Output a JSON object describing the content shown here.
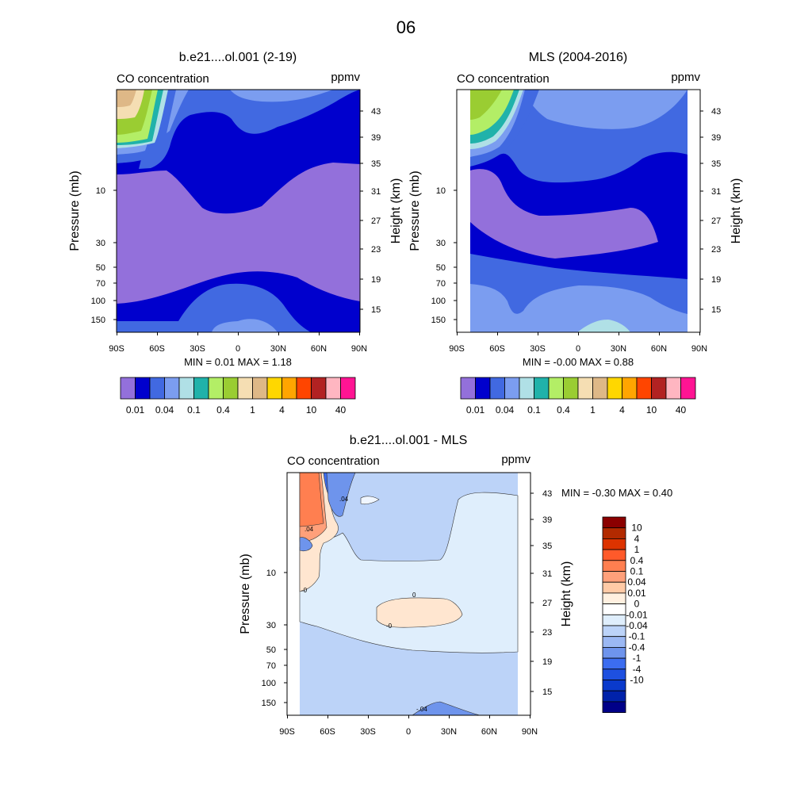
{
  "main_title": "06",
  "panels": [
    {
      "title": "b.e21....ol.001 (2-19)",
      "subtitle_left": "CO concentration",
      "subtitle_right": "ppmv",
      "y_label_left": "Pressure (mb)",
      "y_label_right": "Height (km)",
      "min_max": "MIN =   0.01  MAX =   1.18"
    },
    {
      "title": "MLS (2004-2016)",
      "subtitle_left": "CO concentration",
      "subtitle_right": "ppmv",
      "y_label_left": "Pressure (mb)",
      "y_label_right": "Height (km)",
      "min_max": "MIN =  -0.00  MAX =   0.88"
    },
    {
      "title": "b.e21....ol.001 - MLS",
      "subtitle_left": "CO concentration",
      "subtitle_right": "ppmv",
      "y_label_left": "Pressure (mb)",
      "y_label_right": "Height (km)",
      "min_max": "MIN =  -0.30  MAX =   0.40"
    }
  ],
  "chart_data": {
    "type": "contour",
    "x_ticks": [
      "90S",
      "60S",
      "30S",
      "0",
      "30N",
      "60N",
      "90N"
    ],
    "pressure_ticks": [
      "10",
      "30",
      "50",
      "70",
      "100",
      "150"
    ],
    "height_ticks": [
      "43",
      "39",
      "35",
      "31",
      "27",
      "23",
      "19",
      "15"
    ],
    "abs_colorbar": {
      "colors": [
        "#9370db",
        "#0000cd",
        "#4169e1",
        "#7b9df0",
        "#b0e0e6",
        "#20b2aa",
        "#b3ee66",
        "#9acd32",
        "#f5deb3",
        "#deb887",
        "#ffd700",
        "#ffa500",
        "#ff4500",
        "#b22222",
        "#ffb6c1",
        "#ff1493"
      ],
      "labels": [
        "0.01",
        "0.04",
        "0.1",
        "0.4",
        "1",
        "4",
        "10",
        "40"
      ]
    },
    "diff_colorbar": {
      "colors": [
        "#8b0000",
        "#b22a00",
        "#dd3300",
        "#ff5a2a",
        "#ff7f50",
        "#ffa07a",
        "#ffcaa6",
        "#fff0e0",
        "#ffffff",
        "#dfeefc",
        "#bcd3f8",
        "#9bb8f3",
        "#6e94ec",
        "#3c6df0",
        "#1e50e0",
        "#0a3acc",
        "#0022aa",
        "#000088"
      ],
      "labels": [
        "10",
        "4",
        "1",
        "0.4",
        "0.1",
        "0.04",
        "0.01",
        "0",
        "-0.01",
        "-0.04",
        "-0.1",
        "-0.4",
        "-1",
        "-4",
        "-10"
      ]
    },
    "contour_labels": [
      ".04",
      ".04",
      "-0",
      "0",
      "-0",
      "-.04"
    ]
  }
}
